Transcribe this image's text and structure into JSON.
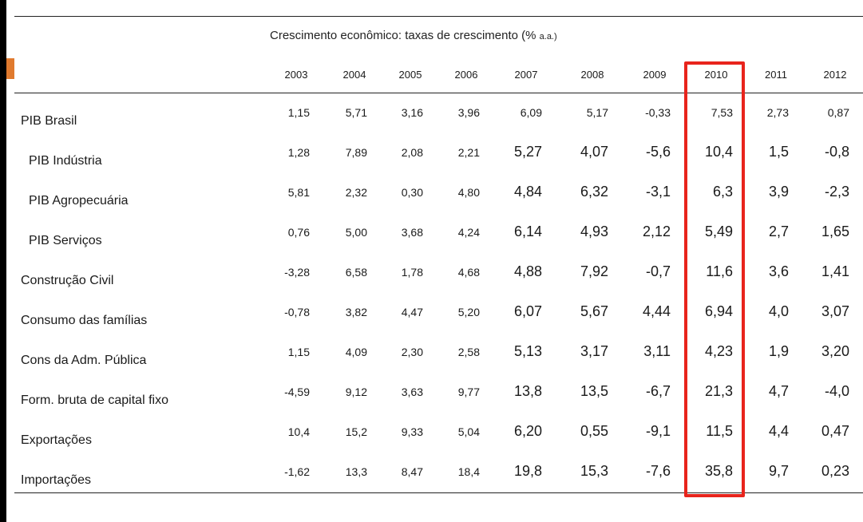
{
  "table": {
    "title": "Crescimento econômico: taxas de crescimento (%",
    "title_unit": "a.a.)",
    "years": [
      "2003",
      "2004",
      "2005",
      "2006",
      "2007",
      "2008",
      "2009",
      "2010",
      "2011",
      "2012"
    ],
    "highlight_year": "2010",
    "highlight_color": "#e8241c",
    "rows": [
      {
        "label": "PIB Brasil",
        "values": [
          "1,15",
          "5,71",
          "3,16",
          "3,96",
          "6,09",
          "5,17",
          "-0,33",
          "7,53",
          "2,73",
          "0,87"
        ]
      },
      {
        "label": "PIB Indústria",
        "values": [
          "1,28",
          "7,89",
          "2,08",
          "2,21",
          "5,27",
          "4,07",
          "-5,6",
          "10,4",
          "1,5",
          "-0,8"
        ]
      },
      {
        "label": "PIB Agropecuária",
        "values": [
          "5,81",
          "2,32",
          "0,30",
          "4,80",
          "4,84",
          "6,32",
          "-3,1",
          "6,3",
          "3,9",
          "-2,3"
        ]
      },
      {
        "label": "PIB Serviços",
        "values": [
          "0,76",
          "5,00",
          "3,68",
          "4,24",
          "6,14",
          "4,93",
          "2,12",
          "5,49",
          "2,7",
          "1,65"
        ]
      },
      {
        "label": "Construção Civil",
        "values": [
          "-3,28",
          "6,58",
          "1,78",
          "4,68",
          "4,88",
          "7,92",
          "-0,7",
          "11,6",
          "3,6",
          "1,41"
        ]
      },
      {
        "label": "Consumo das famílias",
        "values": [
          "-0,78",
          "3,82",
          "4,47",
          "5,20",
          "6,07",
          "5,67",
          "4,44",
          "6,94",
          "4,0",
          "3,07"
        ]
      },
      {
        "label": "Cons da Adm. Pública",
        "values": [
          "1,15",
          "4,09",
          "2,30",
          "2,58",
          "5,13",
          "3,17",
          "3,11",
          "4,23",
          "1,9",
          "3,20"
        ]
      },
      {
        "label": "Form. bruta de capital fixo",
        "values": [
          "-4,59",
          "9,12",
          "3,63",
          "9,77",
          "13,8",
          "13,5",
          "-6,7",
          "21,3",
          "4,7",
          "-4,0"
        ]
      },
      {
        "label": "Exportações",
        "values": [
          "10,4",
          "15,2",
          "9,33",
          "5,04",
          "6,20",
          "0,55",
          "-9,1",
          "11,5",
          "4,4",
          "0,47"
        ]
      },
      {
        "label": "Importações",
        "values": [
          "-1,62",
          "13,3",
          "8,47",
          "18,4",
          "19,8",
          "15,3",
          "-7,6",
          "35,8",
          "9,7",
          "0,23"
        ]
      }
    ]
  }
}
